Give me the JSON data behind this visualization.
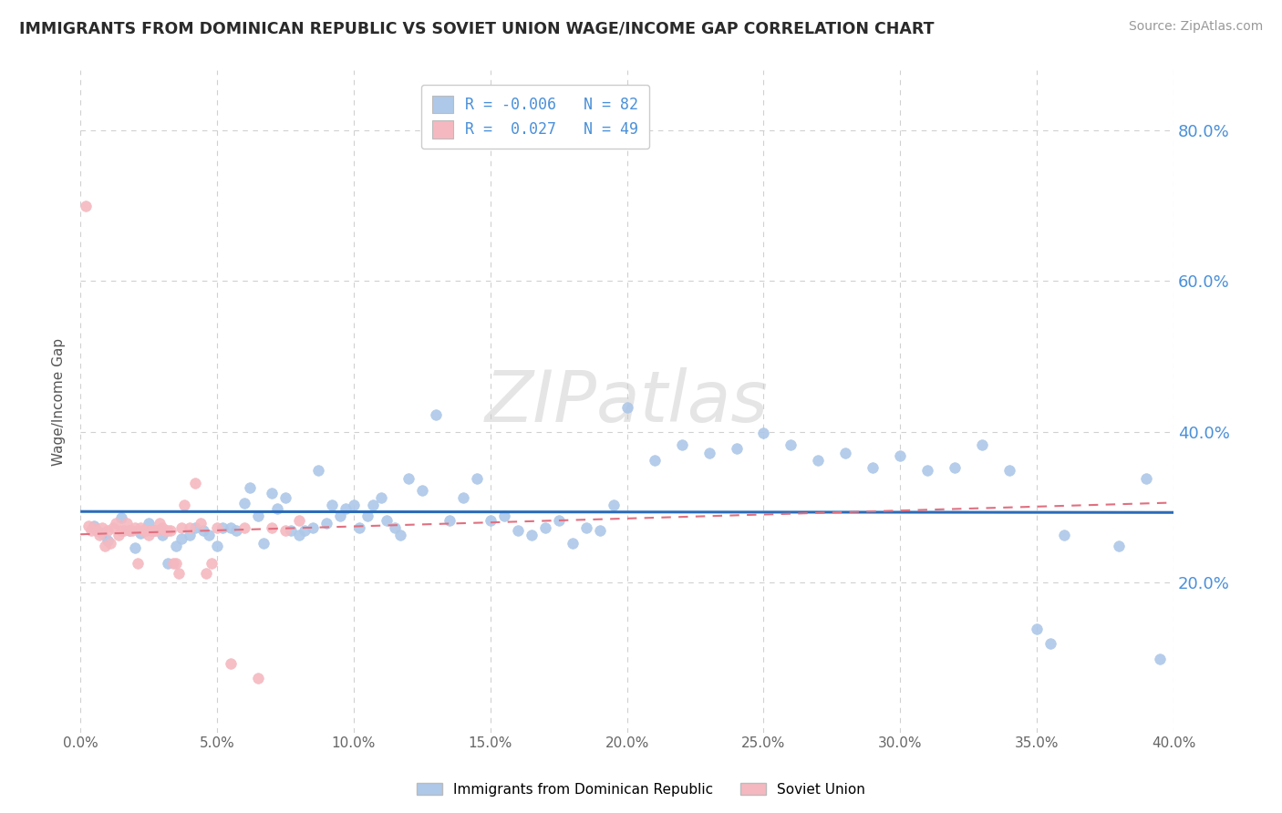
{
  "title": "IMMIGRANTS FROM DOMINICAN REPUBLIC VS SOVIET UNION WAGE/INCOME GAP CORRELATION CHART",
  "source": "Source: ZipAtlas.com",
  "ylabel": "Wage/Income Gap",
  "xlim": [
    0.0,
    0.4
  ],
  "ylim": [
    0.0,
    0.88
  ],
  "x_tick_step": 0.05,
  "y_ticks": [
    0.2,
    0.4,
    0.6,
    0.8
  ],
  "blue_R": -0.006,
  "blue_N": 82,
  "pink_R": 0.027,
  "pink_N": 49,
  "blue_color": "#adc8e8",
  "blue_edge_color": "#adc8e8",
  "blue_line_color": "#2b6cb8",
  "pink_color": "#f5b8c0",
  "pink_edge_color": "#f5b8c0",
  "pink_line_color": "#e07080",
  "watermark": "ZIPatlas",
  "legend_blue_label": "R = -0.006   N = 82",
  "legend_pink_label": "R =  0.027   N = 49",
  "bottom_label_blue": "Immigrants from Dominican Republic",
  "bottom_label_pink": "Soviet Union",
  "blue_scatter_x": [
    0.005,
    0.008,
    0.01,
    0.015,
    0.018,
    0.02,
    0.022,
    0.025,
    0.027,
    0.03,
    0.032,
    0.035,
    0.037,
    0.04,
    0.042,
    0.045,
    0.047,
    0.05,
    0.052,
    0.055,
    0.057,
    0.06,
    0.062,
    0.065,
    0.067,
    0.07,
    0.072,
    0.075,
    0.077,
    0.08,
    0.082,
    0.085,
    0.087,
    0.09,
    0.092,
    0.095,
    0.097,
    0.1,
    0.102,
    0.105,
    0.107,
    0.11,
    0.112,
    0.115,
    0.117,
    0.12,
    0.125,
    0.13,
    0.135,
    0.14,
    0.145,
    0.15,
    0.155,
    0.16,
    0.165,
    0.17,
    0.175,
    0.18,
    0.185,
    0.19,
    0.195,
    0.2,
    0.21,
    0.22,
    0.23,
    0.24,
    0.25,
    0.26,
    0.27,
    0.28,
    0.29,
    0.3,
    0.31,
    0.32,
    0.33,
    0.34,
    0.35,
    0.355,
    0.36,
    0.38,
    0.39,
    0.395
  ],
  "blue_scatter_y": [
    0.275,
    0.265,
    0.255,
    0.285,
    0.268,
    0.245,
    0.265,
    0.278,
    0.268,
    0.262,
    0.225,
    0.248,
    0.258,
    0.262,
    0.272,
    0.268,
    0.262,
    0.248,
    0.272,
    0.272,
    0.268,
    0.305,
    0.325,
    0.288,
    0.252,
    0.318,
    0.298,
    0.312,
    0.268,
    0.262,
    0.268,
    0.272,
    0.348,
    0.278,
    0.302,
    0.288,
    0.298,
    0.302,
    0.272,
    0.288,
    0.302,
    0.312,
    0.282,
    0.272,
    0.262,
    0.338,
    0.322,
    0.422,
    0.282,
    0.312,
    0.338,
    0.282,
    0.288,
    0.268,
    0.262,
    0.272,
    0.282,
    0.252,
    0.272,
    0.268,
    0.302,
    0.432,
    0.362,
    0.382,
    0.372,
    0.378,
    0.398,
    0.382,
    0.362,
    0.372,
    0.352,
    0.368,
    0.348,
    0.352,
    0.382,
    0.348,
    0.138,
    0.118,
    0.262,
    0.248,
    0.338,
    0.098
  ],
  "pink_scatter_x": [
    0.002,
    0.003,
    0.004,
    0.005,
    0.006,
    0.007,
    0.008,
    0.009,
    0.01,
    0.011,
    0.012,
    0.013,
    0.014,
    0.015,
    0.016,
    0.017,
    0.018,
    0.019,
    0.02,
    0.021,
    0.022,
    0.023,
    0.024,
    0.025,
    0.026,
    0.027,
    0.028,
    0.029,
    0.03,
    0.031,
    0.032,
    0.033,
    0.034,
    0.035,
    0.036,
    0.037,
    0.038,
    0.04,
    0.042,
    0.044,
    0.046,
    0.048,
    0.05,
    0.055,
    0.06,
    0.065,
    0.07,
    0.075,
    0.08
  ],
  "pink_scatter_y": [
    0.7,
    0.275,
    0.268,
    0.272,
    0.268,
    0.262,
    0.272,
    0.248,
    0.268,
    0.252,
    0.272,
    0.278,
    0.262,
    0.268,
    0.268,
    0.278,
    0.268,
    0.268,
    0.272,
    0.225,
    0.272,
    0.268,
    0.268,
    0.262,
    0.268,
    0.268,
    0.268,
    0.278,
    0.272,
    0.268,
    0.268,
    0.268,
    0.225,
    0.225,
    0.212,
    0.272,
    0.302,
    0.272,
    0.332,
    0.278,
    0.212,
    0.225,
    0.272,
    0.092,
    0.272,
    0.072,
    0.272,
    0.268,
    0.282
  ]
}
